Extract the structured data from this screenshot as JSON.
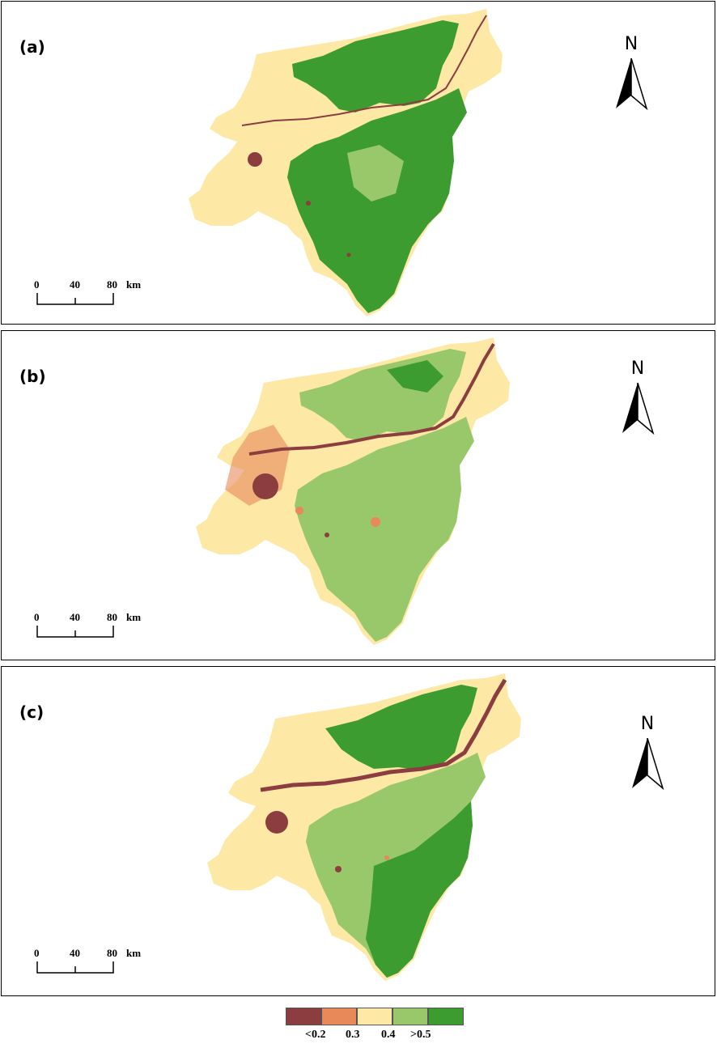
{
  "panels": [
    {
      "label": "(a)",
      "variant": "high"
    },
    {
      "label": "(b)",
      "variant": "low"
    },
    {
      "label": "(c)",
      "variant": "mid"
    }
  ],
  "north_label": "N",
  "scale": {
    "ticks": [
      "0",
      "40",
      "80"
    ],
    "unit": "km"
  },
  "legend": {
    "colors": [
      "#8c3d3f",
      "#e8895a",
      "#fde8a6",
      "#98c86a",
      "#3c9c30"
    ],
    "labels": [
      "<0.2",
      "0.3",
      "0.4",
      ">0.5"
    ]
  }
}
